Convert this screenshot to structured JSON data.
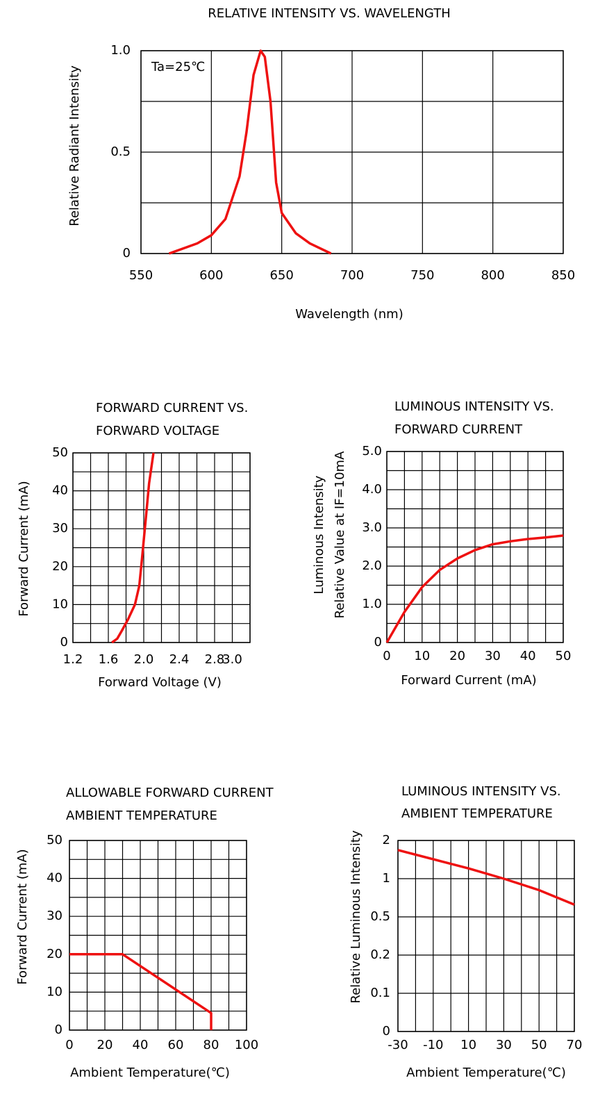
{
  "chart_data": [
    {
      "type": "line",
      "title": "RELATIVE INTENSITY VS. WAVELENGTH",
      "x_label": "Wavelength (nm)",
      "y_label": "Relative Radiant Intensity",
      "annotation": "Ta=25℃",
      "x": [
        570,
        590,
        600,
        610,
        620,
        625,
        630,
        635,
        638,
        642,
        646,
        650,
        660,
        670,
        685
      ],
      "values": [
        0,
        0.05,
        0.09,
        0.17,
        0.38,
        0.6,
        0.88,
        1.0,
        0.97,
        0.75,
        0.35,
        0.2,
        0.1,
        0.05,
        0
      ],
      "color": "#ee1111",
      "xlim": [
        550,
        850
      ],
      "ylim": [
        0,
        1
      ],
      "xticks": [
        550,
        600,
        650,
        700,
        750,
        800,
        850
      ],
      "yticks": [
        0,
        0.5,
        {
          "value": 1,
          "label": "1.0"
        }
      ],
      "xgrid": [
        550,
        600,
        650,
        700,
        750,
        800,
        850
      ],
      "ygrid": [
        0,
        0.25,
        0.5,
        0.75,
        1
      ]
    },
    {
      "type": "line",
      "title": [
        "FORWARD CURRENT VS.",
        "FORWARD VOLTAGE"
      ],
      "x_label": "Forward Voltage (V)",
      "y_label": "Forward Current (mA)",
      "x": [
        1.64,
        1.7,
        1.75,
        1.82,
        1.9,
        1.95,
        1.98,
        2.02,
        2.06,
        2.11
      ],
      "values": [
        0,
        1,
        3,
        6,
        10,
        15,
        22,
        32,
        42,
        50
      ],
      "color": "#ee1111",
      "xlim": [
        1.2,
        3.2
      ],
      "ylim": [
        0,
        50
      ],
      "xticks": [
        1.2,
        1.6,
        {
          "value": 2,
          "label": "2.0"
        },
        2.4,
        2.8,
        {
          "value": 3,
          "label": "3.0"
        }
      ],
      "yticks": [
        0,
        10,
        20,
        30,
        40,
        50
      ],
      "xgrid": [
        1.2,
        1.4,
        1.6,
        1.8,
        2.0,
        2.2,
        2.4,
        2.6,
        2.8,
        3.0,
        3.2
      ],
      "ygrid": [
        0,
        5,
        10,
        15,
        20,
        25,
        30,
        35,
        40,
        45,
        50
      ]
    },
    {
      "type": "line",
      "title": [
        "LUMINOUS INTENSITY VS.",
        "FORWARD CURRENT"
      ],
      "x_label": "Forward Current (mA)",
      "y_label": [
        "Luminous Intensity",
        "Relative Value at IF=10mA"
      ],
      "x": [
        0,
        5,
        10,
        15,
        20,
        25,
        30,
        35,
        40,
        45,
        50
      ],
      "values": [
        0,
        0.8,
        1.45,
        1.9,
        2.2,
        2.42,
        2.57,
        2.65,
        2.71,
        2.75,
        2.8
      ],
      "color": "#ee1111",
      "xlim": [
        0,
        50
      ],
      "ylim": [
        0,
        5
      ],
      "xticks": [
        0,
        10,
        20,
        30,
        40,
        50
      ],
      "yticks": [
        0,
        {
          "value": 1,
          "label": "1.0"
        },
        {
          "value": 2,
          "label": "2.0"
        },
        {
          "value": 3,
          "label": "3.0"
        },
        {
          "value": 4,
          "label": "4.0"
        },
        {
          "value": 5,
          "label": "5.0"
        }
      ],
      "xgrid": [
        0,
        5,
        10,
        15,
        20,
        25,
        30,
        35,
        40,
        45,
        50
      ],
      "ygrid": [
        0,
        0.5,
        1,
        1.5,
        2,
        2.5,
        3,
        3.5,
        4,
        4.5,
        5
      ]
    },
    {
      "type": "line",
      "title": [
        "ALLOWABLE FORWARD CURRENT",
        "AMBIENT TEMPERATURE"
      ],
      "x_label": "Ambient Temperature(℃)",
      "y_label": "Forward Current (mA)",
      "x": [
        0,
        30,
        80,
        80
      ],
      "values": [
        20,
        20,
        4.5,
        0
      ],
      "color": "#ee1111",
      "xlim": [
        0,
        100
      ],
      "ylim": [
        0,
        50
      ],
      "xticks": [
        0,
        20,
        40,
        60,
        80,
        100
      ],
      "yticks": [
        0,
        10,
        20,
        30,
        40,
        50
      ],
      "xgrid": [
        0,
        10,
        20,
        30,
        40,
        50,
        60,
        70,
        80,
        90,
        100
      ],
      "ygrid": [
        0,
        5,
        10,
        15,
        20,
        25,
        30,
        35,
        40,
        45,
        50
      ]
    },
    {
      "type": "line",
      "title": [
        "LUMINOUS INTENSITY VS.",
        "AMBIENT TEMPERATURE"
      ],
      "x_label": "Ambient Temperature(℃)",
      "y_label": "Relative Luminous Intensity",
      "x": [
        -30,
        -10,
        10,
        30,
        50,
        70
      ],
      "values": [
        1.75,
        1.51,
        1.27,
        1.0,
        0.85,
        0.66
      ],
      "color": "#ee1111",
      "xlim": [
        -30,
        70
      ],
      "ylim": [
        0,
        2
      ],
      "yscale": "ticks",
      "xticks": [
        -30,
        -10,
        10,
        30,
        50,
        70
      ],
      "yticks": [
        0,
        0.1,
        0.2,
        0.5,
        1,
        2
      ],
      "xgrid": [
        -30,
        -20,
        -10,
        0,
        10,
        20,
        30,
        40,
        50,
        60,
        70
      ],
      "ygrid": [
        0,
        0.1,
        0.2,
        0.5,
        1,
        2
      ]
    }
  ]
}
